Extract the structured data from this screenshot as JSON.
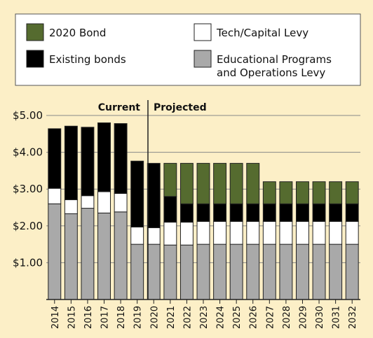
{
  "chart_data": {
    "type": "bar",
    "stacked": true,
    "categories": [
      "2014",
      "2015",
      "2016",
      "2017",
      "2018",
      "2019",
      "2020",
      "2021",
      "2022",
      "2023",
      "2024",
      "2025",
      "2026",
      "2027",
      "2028",
      "2029",
      "2030",
      "2031",
      "2032"
    ],
    "series": [
      {
        "name": "Educational Programs and Operations Levy",
        "color": "#a9a9a9",
        "values": [
          2.6,
          2.33,
          2.48,
          2.35,
          2.38,
          1.5,
          1.5,
          1.48,
          1.48,
          1.5,
          1.5,
          1.5,
          1.5,
          1.5,
          1.5,
          1.5,
          1.5,
          1.5,
          1.5
        ]
      },
      {
        "name": "Tech/Capital Levy",
        "color": "#ffffff",
        "values": [
          0.42,
          0.38,
          0.34,
          0.58,
          0.5,
          0.47,
          0.45,
          0.62,
          0.62,
          0.62,
          0.62,
          0.62,
          0.62,
          0.62,
          0.62,
          0.62,
          0.62,
          0.62,
          0.62
        ]
      },
      {
        "name": "Existing bonds",
        "color": "#000000",
        "values": [
          1.62,
          2.0,
          1.86,
          1.87,
          1.9,
          1.79,
          1.75,
          0.7,
          0.5,
          0.48,
          0.48,
          0.48,
          0.48,
          0.48,
          0.48,
          0.48,
          0.48,
          0.48,
          0.48
        ]
      },
      {
        "name": "2020 Bond",
        "color": "#556b2f",
        "values": [
          0,
          0,
          0,
          0,
          0,
          0,
          0,
          0.9,
          1.1,
          1.1,
          1.1,
          1.1,
          1.1,
          0.6,
          0.6,
          0.6,
          0.6,
          0.6,
          0.6
        ]
      }
    ],
    "ylim": [
      0,
      5.0
    ],
    "yticks": [
      "$1.00",
      "$2.00",
      "$3.00",
      "$4.00",
      "$5.00"
    ],
    "ytick_values": [
      1,
      2,
      3,
      4,
      5
    ],
    "sections": {
      "left": "Current",
      "right": "Projected"
    },
    "grid": true,
    "legend_position": "top"
  },
  "legend": [
    {
      "label": "2020 Bond",
      "color": "#556b2f"
    },
    {
      "label": "Tech/Capital Levy",
      "color": "#ffffff"
    },
    {
      "label": "Existing bonds",
      "color": "#000000"
    },
    {
      "label_lines": [
        "Educational Programs",
        "and Operations Levy"
      ],
      "color": "#a9a9a9"
    }
  ]
}
